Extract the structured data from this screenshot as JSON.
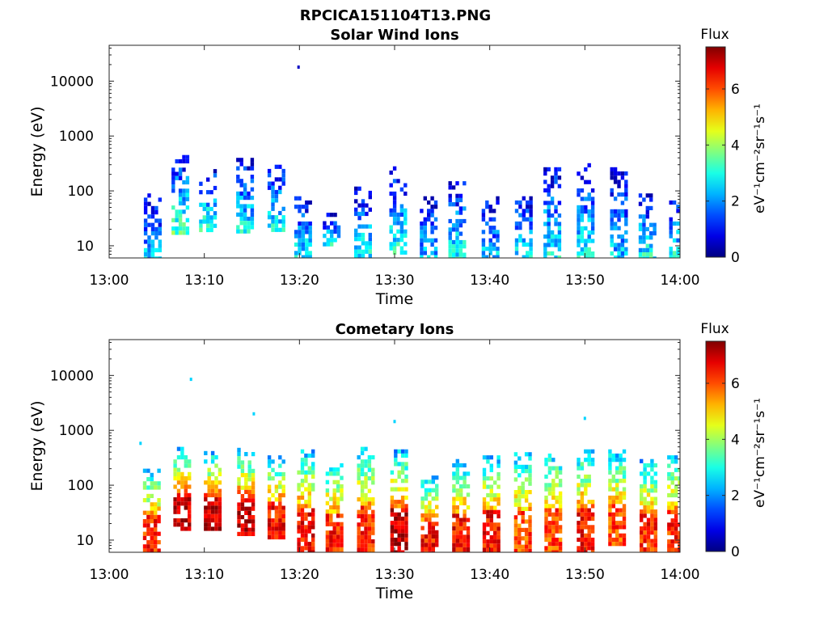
{
  "figure_title": "RPCICA151104T13.PNG",
  "colorbar_label": "Flux",
  "colorbar_unit": "eV⁻¹cm⁻²sr⁻¹s⁻¹",
  "chart_data": [
    {
      "type": "heatmap",
      "title": "Solar Wind Ions",
      "xlabel": "Time",
      "ylabel": "Energy (eV)",
      "x_ticks": [
        "13:00",
        "13:10",
        "13:20",
        "13:30",
        "13:40",
        "13:50",
        "14:00"
      ],
      "y_ticks": [
        "10",
        "100",
        "1000",
        "10000"
      ],
      "y_scale": "log",
      "xlim": [
        "13:00",
        "14:00"
      ],
      "ylim": [
        6,
        45000
      ],
      "colorbar": {
        "label": "Flux",
        "range": [
          0,
          7.5
        ],
        "ticks": [
          "0",
          "2",
          "4",
          "6"
        ]
      },
      "colormap": "jet",
      "bursts": [
        {
          "t": 4.5,
          "emin": 6,
          "emax": 90,
          "peak": 2.5
        },
        {
          "t": 7.4,
          "emin": 18,
          "emax": 450,
          "peak": 3.5
        },
        {
          "t": 10.3,
          "emin": 18,
          "emax": 250,
          "peak": 3.5
        },
        {
          "t": 14.2,
          "emin": 18,
          "emax": 400,
          "peak": 3.0
        },
        {
          "t": 17.5,
          "emin": 18,
          "emax": 300,
          "peak": 3.0
        },
        {
          "t": 20.3,
          "emin": 6,
          "emax": 80,
          "peak": 3.0
        },
        {
          "t": 23.3,
          "emin": 10,
          "emax": 40,
          "peak": 3.0
        },
        {
          "t": 26.6,
          "emin": 6,
          "emax": 120,
          "peak": 3.0
        },
        {
          "t": 30.3,
          "emin": 8,
          "emax": 280,
          "peak": 3.0
        },
        {
          "t": 33.5,
          "emin": 6,
          "emax": 80,
          "peak": 2.5
        },
        {
          "t": 36.5,
          "emin": 6,
          "emax": 150,
          "peak": 3.0
        },
        {
          "t": 40.0,
          "emin": 6,
          "emax": 80,
          "peak": 2.5
        },
        {
          "t": 43.5,
          "emin": 6,
          "emax": 80,
          "peak": 3.0
        },
        {
          "t": 46.5,
          "emin": 6,
          "emax": 270,
          "peak": 3.0
        },
        {
          "t": 50.0,
          "emin": 6,
          "emax": 320,
          "peak": 3.0
        },
        {
          "t": 53.5,
          "emin": 6,
          "emax": 270,
          "peak": 2.5
        },
        {
          "t": 56.5,
          "emin": 6,
          "emax": 90,
          "peak": 3.0
        },
        {
          "t": 59.7,
          "emin": 6,
          "emax": 80,
          "peak": 3.0
        }
      ],
      "isolated_points": [
        {
          "t": 19.9,
          "e": 18000,
          "v": 0.5
        }
      ]
    },
    {
      "type": "heatmap",
      "title": "Cometary Ions",
      "xlabel": "Time",
      "ylabel": "Energy (eV)",
      "x_ticks": [
        "13:00",
        "13:10",
        "13:20",
        "13:30",
        "13:40",
        "13:50",
        "14:00"
      ],
      "y_ticks": [
        "10",
        "100",
        "1000",
        "10000"
      ],
      "y_scale": "log",
      "xlim": [
        "13:00",
        "14:00"
      ],
      "ylim": [
        6,
        45000
      ],
      "colorbar": {
        "label": "Flux",
        "range": [
          0,
          7.5
        ],
        "ticks": [
          "0",
          "2",
          "4",
          "6"
        ]
      },
      "colormap": "jet",
      "bursts": [
        {
          "t": 4.4,
          "emin": 6,
          "emax": 200,
          "peak": 6.3
        },
        {
          "t": 7.6,
          "emin": 16,
          "emax": 500,
          "peak": 7.0
        },
        {
          "t": 10.8,
          "emin": 16,
          "emax": 420,
          "peak": 7.0
        },
        {
          "t": 14.3,
          "emin": 12,
          "emax": 480,
          "peak": 7.0
        },
        {
          "t": 17.5,
          "emin": 12,
          "emax": 350,
          "peak": 6.5
        },
        {
          "t": 20.6,
          "emin": 6,
          "emax": 450,
          "peak": 6.5
        },
        {
          "t": 23.6,
          "emin": 6,
          "emax": 300,
          "peak": 6.3
        },
        {
          "t": 26.9,
          "emin": 6,
          "emax": 500,
          "peak": 6.3
        },
        {
          "t": 30.4,
          "emin": 6,
          "emax": 450,
          "peak": 7.0
        },
        {
          "t": 33.6,
          "emin": 6,
          "emax": 150,
          "peak": 6.5
        },
        {
          "t": 36.9,
          "emin": 6,
          "emax": 300,
          "peak": 6.5
        },
        {
          "t": 40.1,
          "emin": 6,
          "emax": 350,
          "peak": 6.5
        },
        {
          "t": 43.4,
          "emin": 6,
          "emax": 400,
          "peak": 6.0
        },
        {
          "t": 46.6,
          "emin": 6,
          "emax": 450,
          "peak": 6.0
        },
        {
          "t": 50.0,
          "emin": 6,
          "emax": 450,
          "peak": 6.5
        },
        {
          "t": 53.3,
          "emin": 8,
          "emax": 450,
          "peak": 6.0
        },
        {
          "t": 56.6,
          "emin": 6,
          "emax": 300,
          "peak": 6.3
        },
        {
          "t": 59.5,
          "emin": 6,
          "emax": 350,
          "peak": 6.3
        }
      ],
      "isolated_points": [
        {
          "t": 8.6,
          "e": 8500,
          "v": 2.5
        },
        {
          "t": 15.2,
          "e": 2000,
          "v": 2.5
        },
        {
          "t": 30.0,
          "e": 1450,
          "v": 2.5
        },
        {
          "t": 50.0,
          "e": 1650,
          "v": 2.5
        },
        {
          "t": 3.3,
          "e": 580,
          "v": 2.5
        }
      ]
    }
  ]
}
